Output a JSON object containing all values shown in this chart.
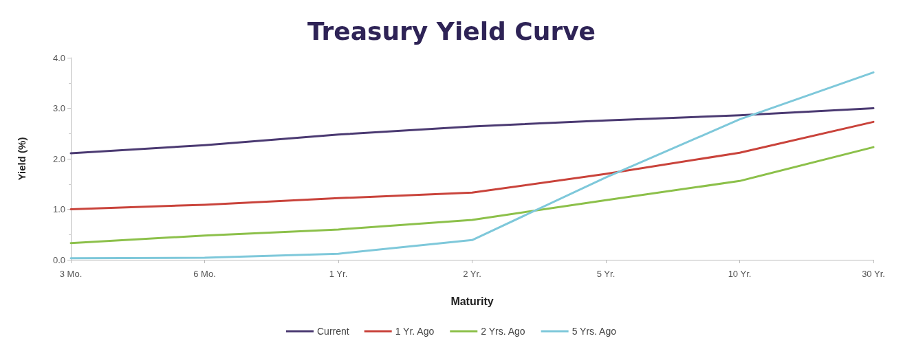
{
  "chart_data": {
    "type": "line",
    "title": "Treasury Yield Curve",
    "xlabel": "Maturity",
    "ylabel": "Yield (%)",
    "categories": [
      "3 Mo.",
      "6 Mo.",
      "1 Yr.",
      "2 Yr.",
      "5 Yr.",
      "10 Yr.",
      "30 Yr."
    ],
    "series": [
      {
        "name": "Current",
        "color": "#4b3a72",
        "values": [
          2.11,
          2.27,
          2.48,
          2.64,
          2.76,
          2.86,
          3.0
        ]
      },
      {
        "name": "1 Yr. Ago",
        "color": "#c9433b",
        "values": [
          1.0,
          1.09,
          1.22,
          1.33,
          1.7,
          2.12,
          2.73
        ]
      },
      {
        "name": "2 Yrs. Ago",
        "color": "#8cc04a",
        "values": [
          0.33,
          0.48,
          0.6,
          0.79,
          1.18,
          1.56,
          2.23
        ]
      },
      {
        "name": "5 Yrs. Ago",
        "color": "#7ec8da",
        "values": [
          0.03,
          0.04,
          0.12,
          0.39,
          1.63,
          2.78,
          3.71
        ]
      }
    ],
    "ylim": [
      0,
      4
    ],
    "yticks": [
      {
        "value": 0,
        "label": "0.0"
      },
      {
        "value": 1,
        "label": "1.0"
      },
      {
        "value": 2,
        "label": "2.0"
      },
      {
        "value": 3,
        "label": "3.0"
      },
      {
        "value": 4,
        "label": "4.0"
      }
    ],
    "grid": false,
    "legend": "bottom",
    "marker": "none",
    "line_style": "solid"
  }
}
